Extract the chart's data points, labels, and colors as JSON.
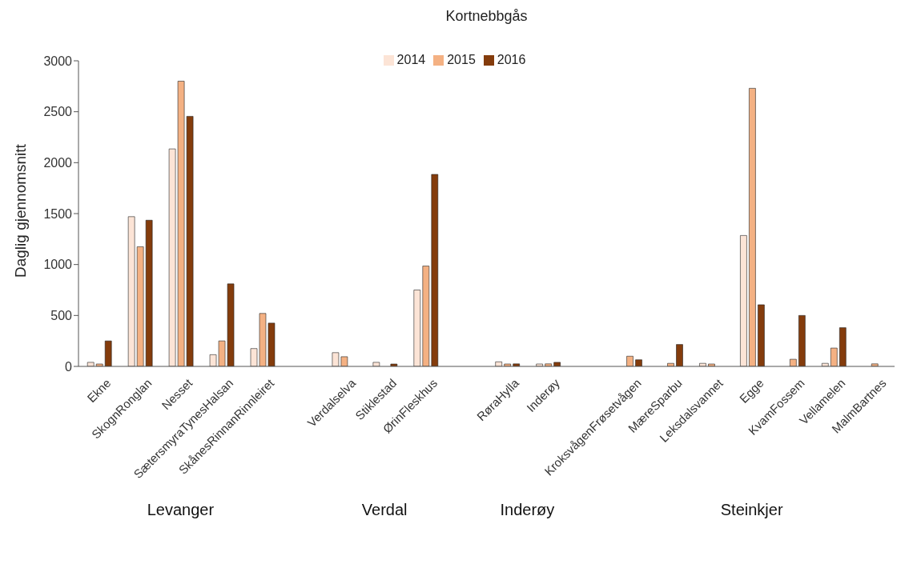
{
  "chart_data": {
    "type": "bar",
    "title": "Kortnebbgås",
    "ylabel": "Daglig gjennomsnitt",
    "categories": [
      "Ekne",
      "SkognRonglan",
      "Nesset",
      "SætersmyraTynesHalsan",
      "SkånesRinnanRinnleiret",
      null,
      "Verdalselva",
      "Stiklestad",
      "ØrinFleskhus",
      null,
      "RøraHylla",
      "Inderøy",
      null,
      "KroksvågenFrøsetvågen",
      "MæreSparbu",
      "Leksdalsvannet",
      "Egge",
      "KvamFossem",
      "Vellamelen",
      "MalmBartnes"
    ],
    "series": [
      {
        "name": "2014",
        "color": "#fce4d6",
        "values": [
          40,
          1470,
          2135,
          115,
          175,
          null,
          135,
          40,
          750,
          null,
          45,
          15,
          null,
          null,
          null,
          30,
          1285,
          null,
          30,
          null
        ]
      },
      {
        "name": "2015",
        "color": "#f4b183",
        "values": [
          20,
          1175,
          2800,
          250,
          520,
          null,
          95,
          null,
          985,
          null,
          15,
          25,
          null,
          100,
          30,
          15,
          2730,
          70,
          180,
          25
        ]
      },
      {
        "name": "2016",
        "color": "#843c0c",
        "values": [
          250,
          1435,
          2455,
          810,
          425,
          null,
          null,
          15,
          1885,
          null,
          25,
          40,
          null,
          65,
          215,
          null,
          605,
          500,
          380,
          null
        ]
      }
    ],
    "annotations": [
      "Levanger",
      "Verdal",
      "Inderøy",
      "Steinkjer"
    ],
    "ylim": [
      0,
      3000
    ],
    "yticks": [
      0,
      500,
      1000,
      1500,
      2000,
      2500,
      3000
    ],
    "grid": false,
    "legend": "top"
  }
}
